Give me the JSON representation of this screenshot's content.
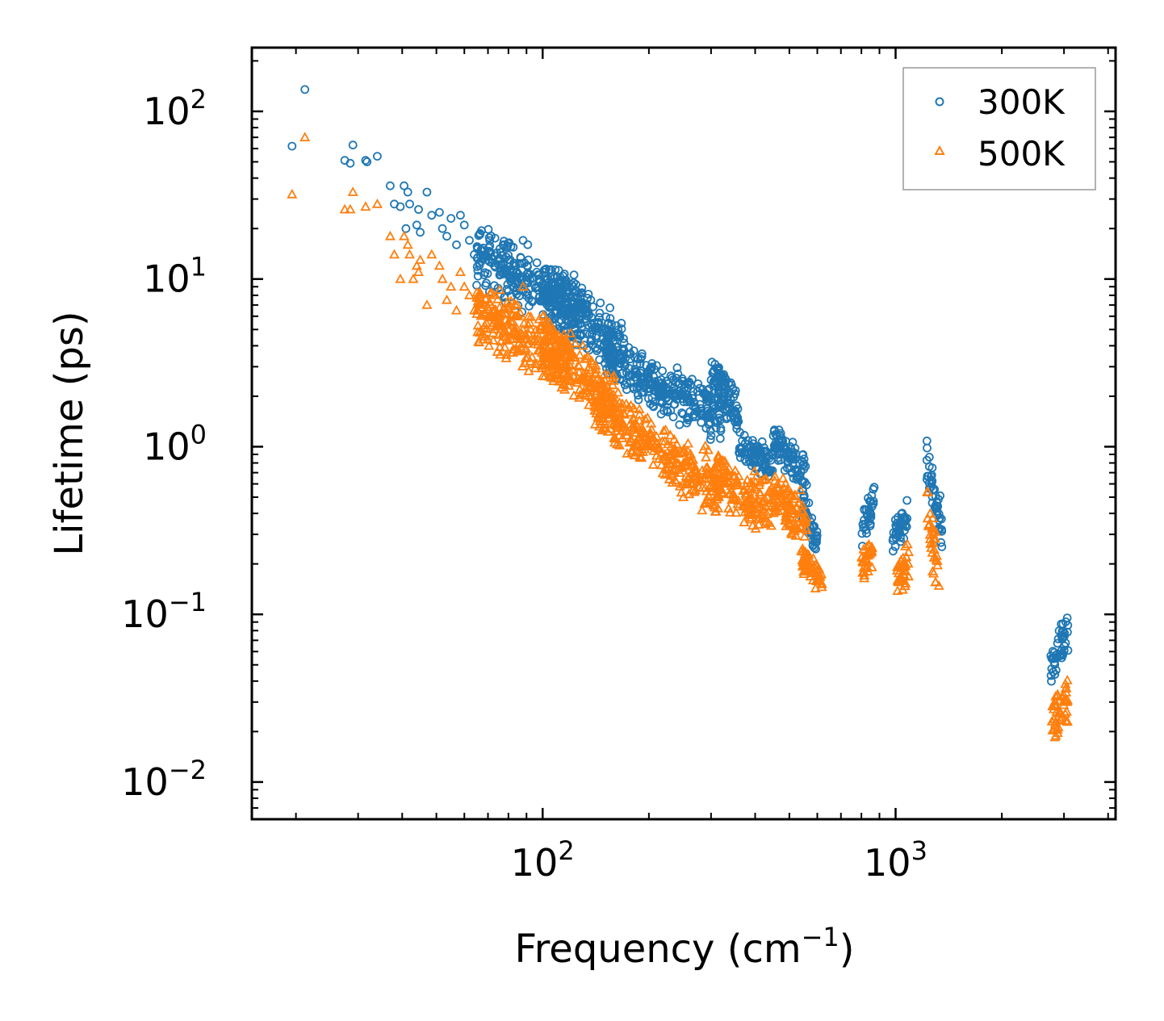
{
  "chart_data": {
    "type": "scatter",
    "title": "",
    "xlabel": "Frequency (cm",
    "xlabel_sup": "−1",
    "xlabel_close": ")",
    "ylabel": "Lifetime (ps)",
    "xscale": "log",
    "yscale": "log",
    "xlim": [
      15,
      4200
    ],
    "ylim": [
      0.006,
      240
    ],
    "x_ticks": [
      {
        "value": 100,
        "base": "10",
        "exp": "2"
      },
      {
        "value": 1000,
        "base": "10",
        "exp": "3"
      }
    ],
    "y_ticks": [
      {
        "value": 100,
        "base": "10",
        "exp": "2"
      },
      {
        "value": 10,
        "base": "10",
        "exp": "1"
      },
      {
        "value": 1,
        "base": "10",
        "exp": "0"
      },
      {
        "value": 0.1,
        "base": "10",
        "exp": "−1"
      },
      {
        "value": 0.01,
        "base": "10",
        "exp": "−2"
      }
    ],
    "legend_position": "top-right",
    "series": [
      {
        "name": "300K",
        "color": "#1f77b4",
        "marker": "circle-open",
        "points": [
          [
            19.5,
            62
          ],
          [
            21.2,
            135
          ],
          [
            27.5,
            51
          ],
          [
            28.5,
            49
          ],
          [
            29.0,
            63
          ],
          [
            31.5,
            51
          ],
          [
            31.8,
            50
          ],
          [
            34.0,
            54
          ],
          [
            37.0,
            36
          ],
          [
            38.0,
            28
          ],
          [
            39.5,
            27
          ],
          [
            40.5,
            36
          ],
          [
            41.5,
            33
          ],
          [
            42.0,
            28
          ],
          [
            41.0,
            20
          ],
          [
            44.0,
            21
          ],
          [
            44.5,
            26
          ],
          [
            45.0,
            19
          ],
          [
            47.0,
            33
          ],
          [
            48.5,
            24
          ],
          [
            51.0,
            25
          ],
          [
            52.0,
            20
          ],
          [
            53.5,
            18
          ],
          [
            55.0,
            23
          ],
          [
            57.0,
            16
          ],
          [
            58.5,
            24
          ],
          [
            60.0,
            21
          ],
          [
            62.0,
            17
          ],
          [
            64.0,
            14
          ],
          [
            67.0,
            15
          ],
          [
            70.0,
            13
          ],
          [
            73.0,
            12
          ],
          [
            76.0,
            11
          ],
          [
            80.0,
            13
          ],
          [
            84.0,
            12
          ],
          [
            88.0,
            17
          ],
          [
            92.0,
            10
          ],
          [
            96.0,
            9
          ],
          [
            100,
            8.5
          ]
        ],
        "bands": [
          {
            "x": [
              65,
              130
            ],
            "y": [
              15,
              6
            ],
            "spread": 1.7
          },
          {
            "x": [
              100,
              170
            ],
            "y": [
              9,
              3.8
            ],
            "spread": 1.6
          },
          {
            "x": [
              150,
              230
            ],
            "y": [
              3.7,
              2.0
            ],
            "spread": 1.45
          },
          {
            "x": [
              230,
              320
            ],
            "y": [
              2.1,
              1.5
            ],
            "spread": 1.5
          },
          {
            "x": [
              300,
              360
            ],
            "y": [
              2.6,
              1.5
            ],
            "spread": 1.4
          },
          {
            "x": [
              310,
              330
            ],
            "y": [
              2.8,
              2.4
            ],
            "spread": 1.1
          },
          {
            "x": [
              360,
              450
            ],
            "y": [
              1.0,
              0.8
            ],
            "spread": 1.3
          },
          {
            "x": [
              450,
              560
            ],
            "y": [
              1.05,
              0.7
            ],
            "spread": 1.35
          },
          {
            "x": [
              540,
              600
            ],
            "y": [
              0.5,
              0.26
            ],
            "spread": 1.3
          },
          {
            "x": [
              800,
              870
            ],
            "y": [
              0.3,
              0.5
            ],
            "spread": 1.3
          },
          {
            "x": [
              980,
              1080
            ],
            "y": [
              0.28,
              0.38
            ],
            "spread": 1.35
          },
          {
            "x": [
              1220,
              1360
            ],
            "y": [
              0.9,
              0.3
            ],
            "spread": 1.5
          },
          {
            "x": [
              2750,
              3080
            ],
            "y": [
              0.05,
              0.08
            ],
            "spread": 1.35
          }
        ]
      },
      {
        "name": "500K",
        "color": "#ff7f0e",
        "marker": "triangle-open",
        "points": [
          [
            19.5,
            32
          ],
          [
            21.2,
            70
          ],
          [
            27.5,
            26
          ],
          [
            28.5,
            26
          ],
          [
            29.0,
            33
          ],
          [
            31.5,
            27
          ],
          [
            34.0,
            28
          ],
          [
            37.0,
            18
          ],
          [
            38.0,
            14
          ],
          [
            39.5,
            10
          ],
          [
            40.5,
            18
          ],
          [
            41.5,
            16
          ],
          [
            42.0,
            14
          ],
          [
            43.0,
            10
          ],
          [
            44.0,
            12
          ],
          [
            44.5,
            11
          ],
          [
            45.0,
            13
          ],
          [
            47.0,
            7
          ],
          [
            48.5,
            14
          ],
          [
            51.0,
            12
          ],
          [
            52.0,
            10
          ],
          [
            53.5,
            7.5
          ],
          [
            55.0,
            9
          ],
          [
            57.0,
            6.5
          ],
          [
            58.5,
            11
          ],
          [
            60.0,
            9
          ],
          [
            62.0,
            8
          ],
          [
            64.0,
            6.5
          ],
          [
            67.0,
            7
          ],
          [
            70.0,
            6
          ],
          [
            73.0,
            6.5
          ],
          [
            76.0,
            5.5
          ],
          [
            80.0,
            5.5
          ],
          [
            84.0,
            6
          ],
          [
            88.0,
            9
          ]
        ],
        "bands": [
          {
            "x": [
              65,
              120
            ],
            "y": [
              6.5,
              3.2
            ],
            "spread": 1.7
          },
          {
            "x": [
              100,
              160
            ],
            "y": [
              4.0,
              1.8
            ],
            "spread": 1.65
          },
          {
            "x": [
              140,
              240
            ],
            "y": [
              1.8,
              0.8
            ],
            "spread": 1.5
          },
          {
            "x": [
              240,
              320
            ],
            "y": [
              0.75,
              0.6
            ],
            "spread": 1.6
          },
          {
            "x": [
              310,
              360
            ],
            "y": [
              0.75,
              0.5
            ],
            "spread": 1.5
          },
          {
            "x": [
              370,
              460
            ],
            "y": [
              0.5,
              0.45
            ],
            "spread": 1.6
          },
          {
            "x": [
              450,
              560
            ],
            "y": [
              0.5,
              0.35
            ],
            "spread": 1.5
          },
          {
            "x": [
              540,
              620
            ],
            "y": [
              0.22,
              0.16
            ],
            "spread": 1.25
          },
          {
            "x": [
              800,
              870
            ],
            "y": [
              0.18,
              0.25
            ],
            "spread": 1.35
          },
          {
            "x": [
              1000,
              1090
            ],
            "y": [
              0.15,
              0.2
            ],
            "spread": 1.45
          },
          {
            "x": [
              1230,
              1330
            ],
            "y": [
              0.4,
              0.15
            ],
            "spread": 1.7
          },
          {
            "x": [
              2750,
              3080
            ],
            "y": [
              0.022,
              0.03
            ],
            "spread": 1.45
          }
        ]
      }
    ]
  }
}
